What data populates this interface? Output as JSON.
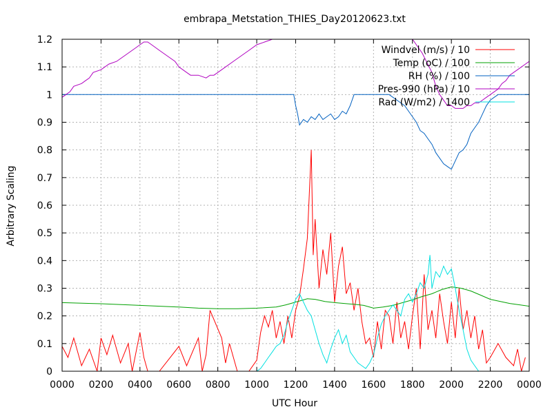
{
  "chart_data": {
    "type": "line",
    "title": "embrapa_Metstation_THIES_Day20120623.txt",
    "xlabel": "UTC Hour",
    "ylabel": "Arbitrary Scaling",
    "xlim": [
      0,
      2400
    ],
    "ylim": [
      0,
      1.2
    ],
    "grid": true,
    "legend_placement": "top-right",
    "x_ticks": [
      "0000",
      "0200",
      "0400",
      "0600",
      "0800",
      "1000",
      "1200",
      "1400",
      "1600",
      "1800",
      "2000",
      "2200",
      "0000"
    ],
    "y_ticks": [
      "0",
      "0.1",
      "0.2",
      "0.3",
      "0.4",
      "0.5",
      "0.6",
      "0.7",
      "0.8",
      "0.9",
      "1",
      "1.1",
      "1.2"
    ],
    "series": [
      {
        "name": "Windvel (m/s) / 10",
        "color": "#ff0000",
        "x": [
          0,
          30,
          60,
          100,
          140,
          180,
          200,
          230,
          260,
          300,
          340,
          360,
          400,
          420,
          440,
          460,
          480,
          500,
          600,
          640,
          700,
          720,
          740,
          760,
          820,
          840,
          860,
          900,
          960,
          1000,
          1020,
          1040,
          1060,
          1080,
          1100,
          1120,
          1140,
          1160,
          1180,
          1200,
          1220,
          1240,
          1260,
          1280,
          1290,
          1300,
          1320,
          1340,
          1360,
          1380,
          1400,
          1420,
          1440,
          1460,
          1480,
          1500,
          1520,
          1540,
          1560,
          1580,
          1600,
          1620,
          1640,
          1660,
          1680,
          1700,
          1720,
          1740,
          1760,
          1780,
          1800,
          1820,
          1840,
          1860,
          1880,
          1900,
          1920,
          1940,
          1960,
          1980,
          2000,
          2020,
          2040,
          2060,
          2080,
          2100,
          2120,
          2140,
          2160,
          2180,
          2200,
          2240,
          2280,
          2320,
          2340,
          2360,
          2380
        ],
        "y": [
          0.09,
          0.05,
          0.12,
          0.02,
          0.08,
          0.0,
          0.12,
          0.06,
          0.13,
          0.03,
          0.1,
          0.0,
          0.14,
          0.05,
          0.0,
          0.0,
          0.0,
          0.0,
          0.09,
          0.02,
          0.12,
          0.0,
          0.06,
          0.22,
          0.12,
          0.03,
          0.1,
          0.0,
          0.0,
          0.04,
          0.14,
          0.2,
          0.16,
          0.22,
          0.12,
          0.18,
          0.1,
          0.2,
          0.12,
          0.22,
          0.27,
          0.37,
          0.48,
          0.8,
          0.42,
          0.55,
          0.3,
          0.44,
          0.35,
          0.5,
          0.25,
          0.38,
          0.45,
          0.28,
          0.32,
          0.22,
          0.3,
          0.18,
          0.1,
          0.12,
          0.05,
          0.18,
          0.08,
          0.22,
          0.2,
          0.1,
          0.25,
          0.12,
          0.18,
          0.08,
          0.2,
          0.3,
          0.08,
          0.35,
          0.15,
          0.22,
          0.12,
          0.28,
          0.18,
          0.1,
          0.25,
          0.12,
          0.3,
          0.15,
          0.22,
          0.12,
          0.2,
          0.08,
          0.15,
          0.03,
          0.05,
          0.1,
          0.05,
          0.02,
          0.08,
          0.0,
          0.05
        ]
      },
      {
        "name": "Temp (oC) / 100",
        "color": "#00a000",
        "x": [
          0,
          200,
          400,
          600,
          700,
          800,
          900,
          1000,
          1100,
          1150,
          1200,
          1260,
          1300,
          1350,
          1400,
          1450,
          1500,
          1550,
          1600,
          1650,
          1700,
          1750,
          1800,
          1850,
          1900,
          1950,
          2000,
          2050,
          2100,
          2150,
          2200,
          2300,
          2400
        ],
        "y": [
          0.248,
          0.244,
          0.238,
          0.232,
          0.228,
          0.226,
          0.226,
          0.228,
          0.232,
          0.24,
          0.25,
          0.262,
          0.26,
          0.252,
          0.248,
          0.245,
          0.242,
          0.238,
          0.228,
          0.232,
          0.238,
          0.248,
          0.258,
          0.27,
          0.28,
          0.295,
          0.305,
          0.3,
          0.29,
          0.275,
          0.26,
          0.245,
          0.235
        ]
      },
      {
        "name": "RH (%) / 100",
        "color": "#0060c0",
        "x": [
          0,
          200,
          400,
          600,
          800,
          1000,
          1100,
          1190,
          1200,
          1210,
          1220,
          1240,
          1260,
          1280,
          1300,
          1320,
          1340,
          1360,
          1380,
          1400,
          1420,
          1440,
          1460,
          1480,
          1500,
          1520,
          1540,
          1560,
          1580,
          1600,
          1620,
          1640,
          1660,
          1680,
          1700,
          1720,
          1740,
          1760,
          1780,
          1800,
          1820,
          1840,
          1860,
          1880,
          1900,
          1920,
          1940,
          1960,
          1980,
          2000,
          2020,
          2040,
          2060,
          2080,
          2100,
          2120,
          2140,
          2160,
          2180,
          2200,
          2220,
          2240,
          2400
        ],
        "y": [
          1.0,
          1.0,
          1.0,
          1.0,
          1.0,
          1.0,
          1.0,
          1.0,
          0.96,
          0.93,
          0.89,
          0.91,
          0.9,
          0.92,
          0.91,
          0.93,
          0.91,
          0.92,
          0.93,
          0.91,
          0.92,
          0.94,
          0.93,
          0.96,
          1.0,
          1.0,
          1.0,
          1.0,
          1.0,
          1.0,
          1.0,
          1.0,
          1.0,
          1.0,
          0.99,
          0.98,
          0.97,
          0.96,
          0.94,
          0.92,
          0.9,
          0.87,
          0.86,
          0.84,
          0.82,
          0.79,
          0.77,
          0.75,
          0.74,
          0.73,
          0.76,
          0.79,
          0.8,
          0.82,
          0.86,
          0.88,
          0.9,
          0.93,
          0.96,
          0.98,
          0.99,
          1.0,
          1.0
        ]
      },
      {
        "name": "Pres-990 (hPa) / 10",
        "color": "#b000c0",
        "x": [
          0,
          20,
          40,
          60,
          100,
          120,
          140,
          160,
          200,
          240,
          280,
          300,
          340,
          380,
          400,
          420,
          440,
          460,
          500,
          540,
          580,
          600,
          620,
          640,
          660,
          680,
          700,
          740,
          760,
          780,
          800,
          840,
          880,
          920,
          960,
          1000,
          1040,
          1080,
          1100,
          1200,
          1300,
          1400,
          1500,
          1600,
          1700,
          1750,
          1800,
          1850,
          1900,
          1920,
          1940,
          1960,
          1980,
          2000,
          2020,
          2040,
          2060,
          2080,
          2100,
          2120,
          2140,
          2160,
          2180,
          2200,
          2220,
          2240,
          2260,
          2280,
          2300,
          2320,
          2340,
          2360,
          2380,
          2400
        ],
        "y": [
          0.99,
          1.0,
          1.01,
          1.03,
          1.04,
          1.05,
          1.06,
          1.08,
          1.09,
          1.11,
          1.12,
          1.13,
          1.15,
          1.17,
          1.18,
          1.19,
          1.19,
          1.18,
          1.16,
          1.14,
          1.12,
          1.1,
          1.09,
          1.08,
          1.07,
          1.07,
          1.07,
          1.06,
          1.07,
          1.07,
          1.08,
          1.1,
          1.12,
          1.14,
          1.16,
          1.18,
          1.19,
          1.2,
          1.2,
          1.2,
          1.2,
          1.2,
          1.2,
          1.2,
          1.2,
          1.2,
          1.2,
          1.15,
          1.08,
          1.03,
          1.0,
          0.98,
          0.96,
          0.96,
          0.95,
          0.95,
          0.95,
          0.96,
          0.96,
          0.97,
          0.97,
          0.98,
          0.99,
          1.0,
          1.01,
          1.02,
          1.04,
          1.05,
          1.07,
          1.08,
          1.09,
          1.1,
          1.11,
          1.12
        ]
      },
      {
        "name": "Rad (W/m2) / 1400",
        "color": "#00e0e0",
        "x": [
          0,
          1000,
          1020,
          1040,
          1060,
          1080,
          1100,
          1120,
          1140,
          1160,
          1180,
          1200,
          1220,
          1240,
          1260,
          1280,
          1300,
          1320,
          1340,
          1360,
          1380,
          1400,
          1420,
          1440,
          1460,
          1480,
          1500,
          1520,
          1540,
          1560,
          1580,
          1600,
          1620,
          1640,
          1660,
          1680,
          1700,
          1720,
          1740,
          1760,
          1780,
          1800,
          1820,
          1840,
          1860,
          1880,
          1890,
          1900,
          1920,
          1940,
          1960,
          1980,
          2000,
          2020,
          2040,
          2060,
          2080,
          2100,
          2120,
          2140,
          2160,
          2180,
          2200,
          2400
        ],
        "y": [
          0.0,
          0.0,
          0.01,
          0.03,
          0.05,
          0.07,
          0.09,
          0.1,
          0.13,
          0.18,
          0.22,
          0.26,
          0.28,
          0.25,
          0.22,
          0.2,
          0.15,
          0.1,
          0.06,
          0.03,
          0.08,
          0.12,
          0.15,
          0.1,
          0.13,
          0.07,
          0.05,
          0.03,
          0.02,
          0.01,
          0.03,
          0.06,
          0.12,
          0.17,
          0.2,
          0.22,
          0.24,
          0.22,
          0.2,
          0.26,
          0.28,
          0.25,
          0.28,
          0.32,
          0.3,
          0.35,
          0.42,
          0.3,
          0.36,
          0.34,
          0.38,
          0.35,
          0.37,
          0.3,
          0.22,
          0.15,
          0.08,
          0.04,
          0.02,
          0.0,
          0.0,
          0.0,
          0.0,
          0.0
        ]
      }
    ]
  }
}
